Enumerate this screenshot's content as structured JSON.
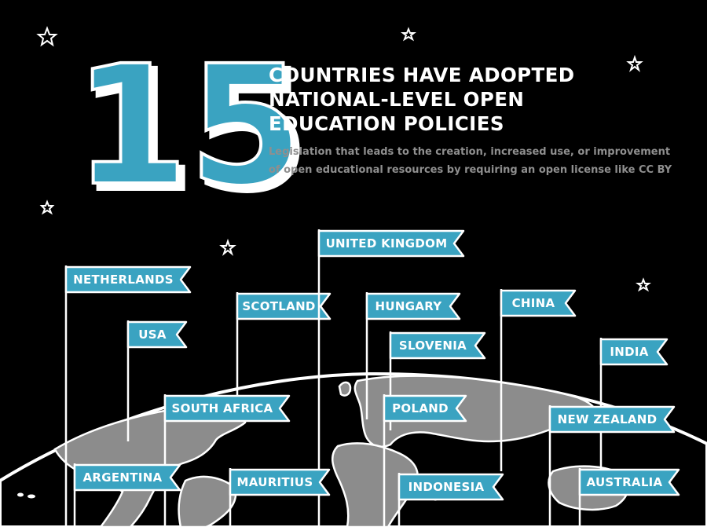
{
  "big_number": "15",
  "headline_lines": [
    "COUNTRIES HAVE ADOPTED",
    "NATIONAL-LEVEL OPEN",
    "EDUCATION POLICIES"
  ],
  "subtitle_lines": [
    "Legislation that leads to the creation, increased use, or improvement",
    "of open educational resources by requiring an open license like CC BY"
  ],
  "flags": [
    {
      "name": "NETHERLANDS"
    },
    {
      "name": "USA"
    },
    {
      "name": "SCOTLAND"
    },
    {
      "name": "UNITED KINGDOM"
    },
    {
      "name": "HUNGARY"
    },
    {
      "name": "SLOVENIA"
    },
    {
      "name": "CHINA"
    },
    {
      "name": "INDIA"
    },
    {
      "name": "SOUTH AFRICA"
    },
    {
      "name": "POLAND"
    },
    {
      "name": "NEW ZEALAND"
    },
    {
      "name": "ARGENTINA"
    },
    {
      "name": "MAURITIUS"
    },
    {
      "name": "INDONESIA"
    },
    {
      "name": "AUSTRALIA"
    }
  ],
  "colors": {
    "background": "#000000",
    "accent": "#3aa3c1",
    "land": "#8c8c8c",
    "text": "#ffffff",
    "subtitle": "#8f8f8f"
  }
}
